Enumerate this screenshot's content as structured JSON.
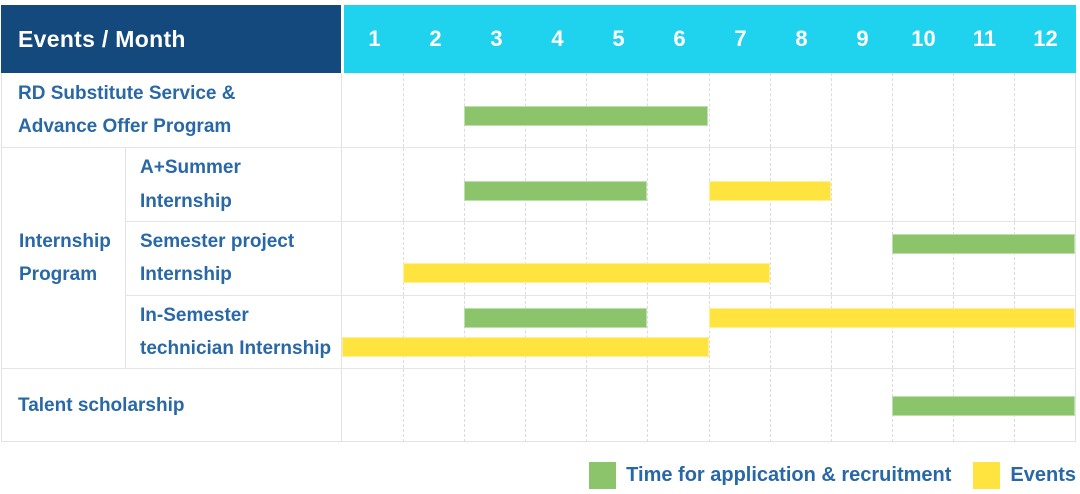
{
  "colors": {
    "header_bg": "#14497E",
    "month_header_bg": "#1FD2ED",
    "header_text": "#FFFFFF",
    "label_text": "#2968A6",
    "application_bar": "#8BC46B",
    "event_bar": "#FFE33F",
    "grid_line": "#E2E2E2"
  },
  "chart_data": {
    "type": "gantt",
    "title": "Events / Month",
    "x": {
      "unit": "month",
      "range": [
        1,
        12
      ],
      "ticks": [
        "1",
        "2",
        "3",
        "4",
        "5",
        "6",
        "7",
        "8",
        "9",
        "10",
        "11",
        "12"
      ]
    },
    "grid": "vertical-dashed",
    "legend_position": "bottom-right",
    "legend": [
      {
        "series": "application",
        "name": "Time for application & recruitment",
        "color": "#8BC46B"
      },
      {
        "series": "events",
        "name": "Events",
        "color": "#FFE33F"
      }
    ],
    "group_label": "Internship\nProgram",
    "rows": [
      {
        "label": "RD Substitute Service &\nAdvance Offer Program",
        "group": "",
        "bars": [
          {
            "series": "application",
            "start_month": 3,
            "end_month": 6,
            "lane": "single"
          }
        ]
      },
      {
        "label": "A+Summer\nInternship",
        "group": "Internship Program",
        "bars": [
          {
            "series": "application",
            "start_month": 3,
            "end_month": 5,
            "lane": "single"
          },
          {
            "series": "events",
            "start_month": 7,
            "end_month": 8,
            "lane": "single"
          }
        ]
      },
      {
        "label": "Semester project\nInternship",
        "group": "Internship Program",
        "bars": [
          {
            "series": "application",
            "start_month": 10,
            "end_month": 12,
            "lane": "upper"
          },
          {
            "series": "events",
            "start_month": 2,
            "end_month": 7,
            "lane": "lower"
          }
        ]
      },
      {
        "label": "In-Semester\ntechnician Internship",
        "group": "Internship Program",
        "bars": [
          {
            "series": "application",
            "start_month": 3,
            "end_month": 5,
            "lane": "upper"
          },
          {
            "series": "events",
            "start_month": 7,
            "end_month": 12,
            "lane": "upper"
          },
          {
            "series": "events",
            "start_month": 1,
            "end_month": 6,
            "lane": "lower"
          }
        ]
      },
      {
        "label": "Talent scholarship",
        "group": "",
        "bars": [
          {
            "series": "application",
            "start_month": 10,
            "end_month": 12,
            "lane": "center"
          }
        ]
      }
    ]
  }
}
